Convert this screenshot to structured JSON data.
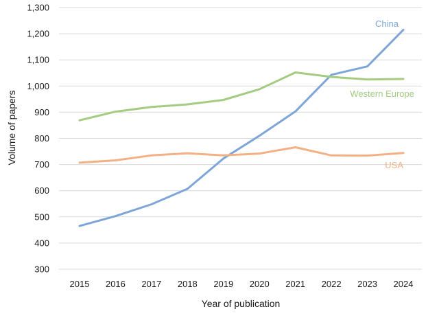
{
  "chart_data": {
    "type": "line",
    "title": "",
    "xlabel": "Year of publication",
    "ylabel": "Volume of papers",
    "ylim": [
      300,
      1300
    ],
    "yticks": [
      300,
      400,
      500,
      600,
      700,
      800,
      900,
      1000,
      1100,
      1200,
      1300
    ],
    "ytick_labels": [
      "300",
      "400",
      "500",
      "600",
      "700",
      "800",
      "900",
      "1,000",
      "1,100",
      "1,200",
      "1,300"
    ],
    "categories": [
      "2015",
      "2016",
      "2017",
      "2018",
      "2019",
      "2020",
      "2021",
      "2022",
      "2023",
      "2024"
    ],
    "grid": true,
    "series": [
      {
        "name": "China",
        "color": "#7ea5d8",
        "values": [
          465,
          503,
          548,
          607,
          723,
          810,
          903,
          1043,
          1075,
          1215
        ]
      },
      {
        "name": "Western Europe",
        "color": "#a3cc80",
        "values": [
          869,
          902,
          920,
          930,
          947,
          988,
          1052,
          1035,
          1025,
          1027
        ]
      },
      {
        "name": "USA",
        "color": "#f2b084",
        "values": [
          707,
          716,
          735,
          743,
          735,
          742,
          766,
          735,
          734,
          744
        ]
      }
    ]
  }
}
